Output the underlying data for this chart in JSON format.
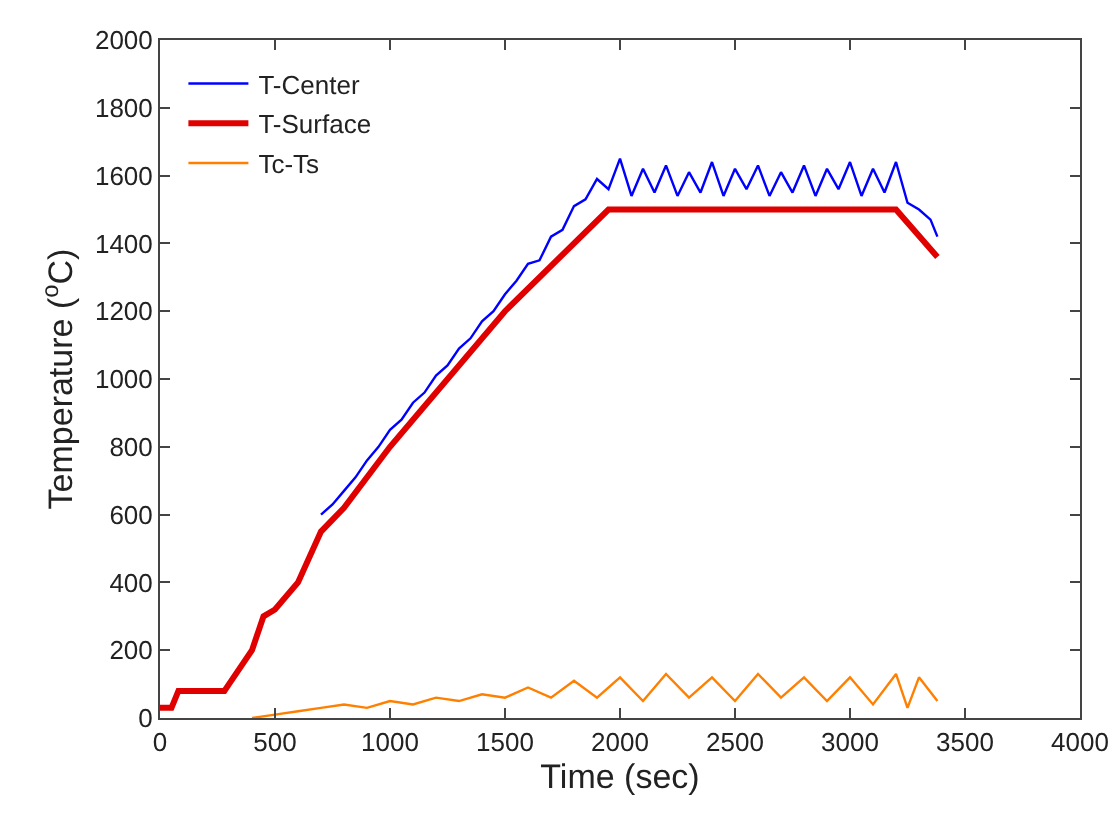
{
  "chart_data": {
    "type": "line",
    "xlabel": "Time (sec)",
    "ylabel": "Temperature ($^{o}$C)",
    "xlim": [
      0,
      4000
    ],
    "xticks": [
      0,
      500,
      1000,
      1500,
      2000,
      2500,
      3000,
      3500,
      4000
    ],
    "ylim": [
      0,
      2000
    ],
    "yticks": [
      0,
      200,
      400,
      600,
      800,
      1000,
      1200,
      1400,
      1600,
      1800,
      2000
    ],
    "grid": false,
    "legend": "top left",
    "marker": "none",
    "line_style": "solid",
    "series": [
      {
        "name": "T-Center",
        "color": "#0000ff",
        "x": [
          700,
          750,
          800,
          850,
          900,
          950,
          1000,
          1050,
          1100,
          1150,
          1200,
          1250,
          1300,
          1350,
          1400,
          1450,
          1500,
          1550,
          1600,
          1650,
          1700,
          1750,
          1800,
          1850,
          1900,
          1950,
          2000,
          2050,
          2100,
          2150,
          2200,
          2250,
          2300,
          2350,
          2400,
          2450,
          2500,
          2550,
          2600,
          2650,
          2700,
          2750,
          2800,
          2850,
          2900,
          2950,
          3000,
          3050,
          3100,
          3150,
          3200,
          3250,
          3300,
          3350,
          3380
        ],
        "values": [
          600,
          630,
          670,
          710,
          760,
          800,
          850,
          880,
          930,
          960,
          1010,
          1040,
          1090,
          1120,
          1170,
          1200,
          1250,
          1290,
          1340,
          1350,
          1420,
          1440,
          1510,
          1530,
          1590,
          1560,
          1650,
          1540,
          1620,
          1550,
          1630,
          1540,
          1610,
          1550,
          1640,
          1540,
          1620,
          1560,
          1630,
          1540,
          1610,
          1550,
          1630,
          1540,
          1620,
          1560,
          1640,
          1540,
          1620,
          1550,
          1640,
          1520,
          1500,
          1470,
          1420
        ]
      },
      {
        "name": "T-Surface",
        "color": "#e00000",
        "x": [
          0,
          50,
          80,
          100,
          280,
          300,
          400,
          450,
          500,
          600,
          700,
          800,
          1000,
          1500,
          1950,
          3200,
          3380
        ],
        "values": [
          30,
          30,
          80,
          80,
          80,
          100,
          200,
          300,
          320,
          400,
          550,
          620,
          800,
          1200,
          1500,
          1500,
          1360
        ]
      },
      {
        "name": "Tc-Ts",
        "color": "#ff8000",
        "x": [
          400,
          500,
          600,
          700,
          800,
          900,
          1000,
          1100,
          1200,
          1300,
          1400,
          1500,
          1600,
          1700,
          1800,
          1900,
          2000,
          2100,
          2200,
          2300,
          2400,
          2500,
          2600,
          2700,
          2800,
          2900,
          3000,
          3100,
          3200,
          3250,
          3300,
          3380
        ],
        "values": [
          0,
          10,
          20,
          30,
          40,
          30,
          50,
          40,
          60,
          50,
          70,
          60,
          90,
          60,
          110,
          60,
          120,
          50,
          130,
          60,
          120,
          50,
          130,
          60,
          120,
          50,
          120,
          40,
          130,
          30,
          120,
          50
        ]
      }
    ]
  }
}
